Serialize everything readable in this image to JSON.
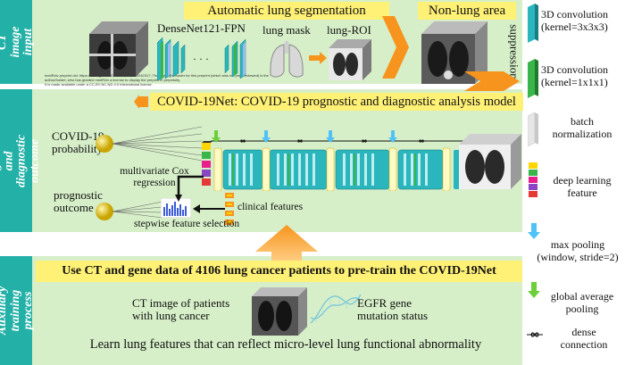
{
  "sections": {
    "ct_input": "CT image input",
    "prognostic": "Prognostic and diagnostic outcome",
    "auxiliary": "Auxiliary training process"
  },
  "top": {
    "seg_title": "Automatic lung segmentation",
    "non_lung_title": "Non-lung area",
    "suppression": "suppression",
    "densenet": "DenseNet121-FPN",
    "lung_mask": "lung mask",
    "lung_roi": "lung-ROI",
    "ellipsis": "· · ·",
    "fine_print": [
      "medRxiv preprint doi: https://doi.org/10.1101/2020.03.24.20042317; The copyright holder for this preprint (which was not peer-reviewed) is the",
      "author/funder, who has granted medRxiv a license to display the preprint in perpetuity.",
      "It is made available under a CC-BY-NC-ND 4.0 International license ."
    ]
  },
  "middle": {
    "banner": "COVID-19Net: COVID-19 prognostic and diagnostic analysis model",
    "covid_prob": "COVID-19\nprobability",
    "prognostic_outcome": "prognostic\noutcome",
    "cox": "multivariate Cox\nregression",
    "clinical": "clinical features",
    "stepwise": "stepwise feature selection"
  },
  "bottom": {
    "banner": "Use CT and gene data of 4106 lung cancer patients to pre-train the COVID-19Net",
    "ct_patients": "CT image of patients\nwith lung cancer",
    "egfr": "EGFR gene\nmutation status",
    "learn": "Learn lung features that can reflect micro-level lung functional abnormality"
  },
  "legend": {
    "conv3": "3D convolution\n(kernel=3x3x3)",
    "conv1": "3D convolution\n(kernel=1x1x1)",
    "bn": "batch\nnormalization",
    "dlf": "deep learning\nfeature",
    "maxpool": "max pooling\n(window, stride=2)",
    "gap": "global average\npooling",
    "dense": "dense\nconnection"
  },
  "colors": {
    "panel_green": "#d6efc8",
    "sidebar_teal": "#23b0a6",
    "banner_yellow": "#fff176",
    "conv_teal": "#2bb6bd",
    "conv_green": "#39b54a",
    "arrow_orange": "#f7941d",
    "pool_blue": "#4fc3f7"
  }
}
